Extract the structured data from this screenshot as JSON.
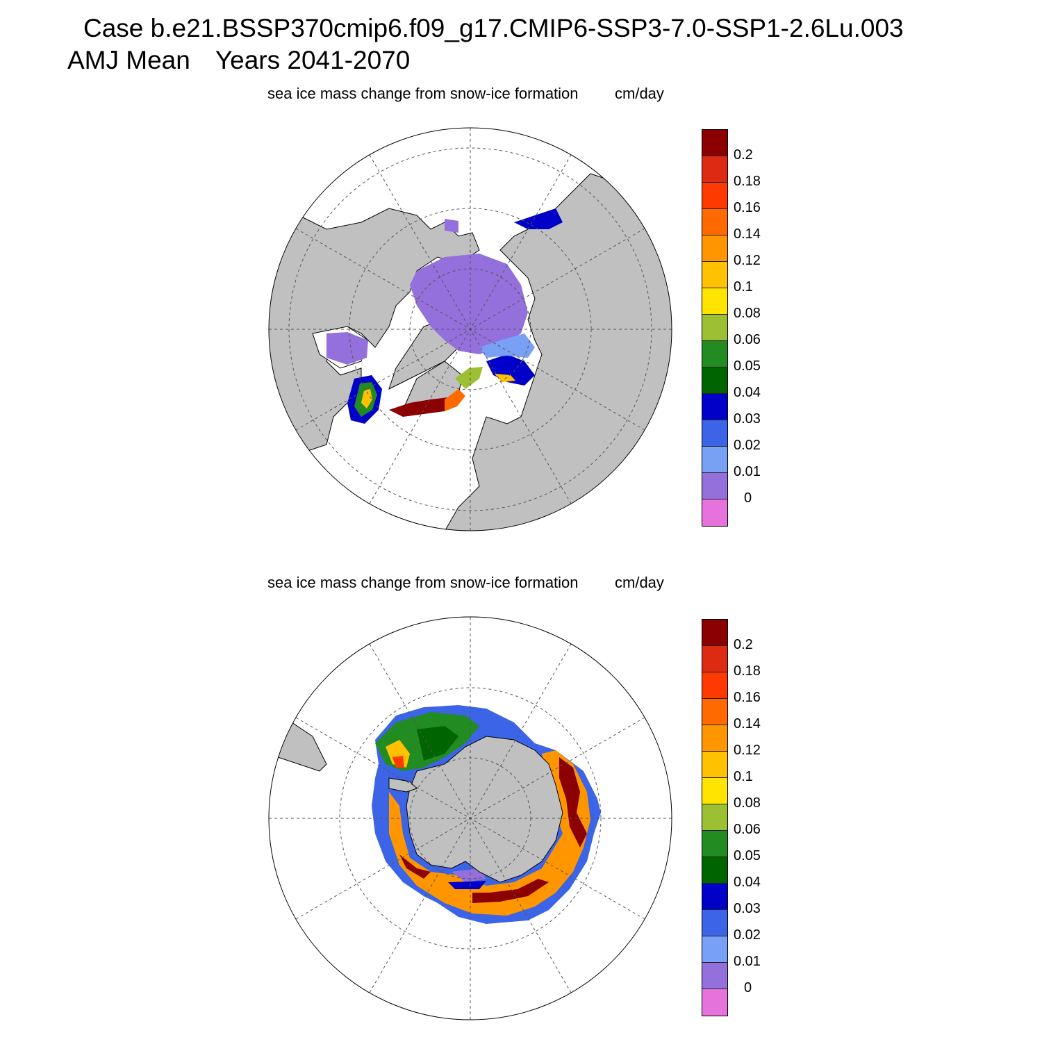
{
  "header": {
    "line1": "Case b.e21.BSSP370cmip6.f09_g17.CMIP6-SSP3-7.0-SSP1-2.6Lu.003",
    "line2_a": "AMJ Mean",
    "line2_b": "Years 2041-2070"
  },
  "panels": [
    {
      "title": "sea ice mass change from snow-ice formation",
      "units": "cm/day",
      "hemisphere": "north"
    },
    {
      "title": "sea ice mass change from snow-ice formation",
      "units": "cm/day",
      "hemisphere": "south"
    }
  ],
  "colorbar": {
    "labels": [
      "0.2",
      "0.18",
      "0.16",
      "0.14",
      "0.12",
      "0.1",
      "0.08",
      "0.06",
      "0.05",
      "0.04",
      "0.03",
      "0.02",
      "0.01",
      "0"
    ],
    "colors_top_to_bottom": [
      "#8b0000",
      "#dd2a12",
      "#ff3a00",
      "#ff6a00",
      "#ff9600",
      "#ffc100",
      "#ffe400",
      "#9cbf33",
      "#228b22",
      "#006400",
      "#0000c8",
      "#3c64e6",
      "#78a0f5",
      "#9370db",
      "#e673dc"
    ]
  },
  "colors": {
    "land": "#c0c0c0",
    "ocean": "#ffffff"
  }
}
